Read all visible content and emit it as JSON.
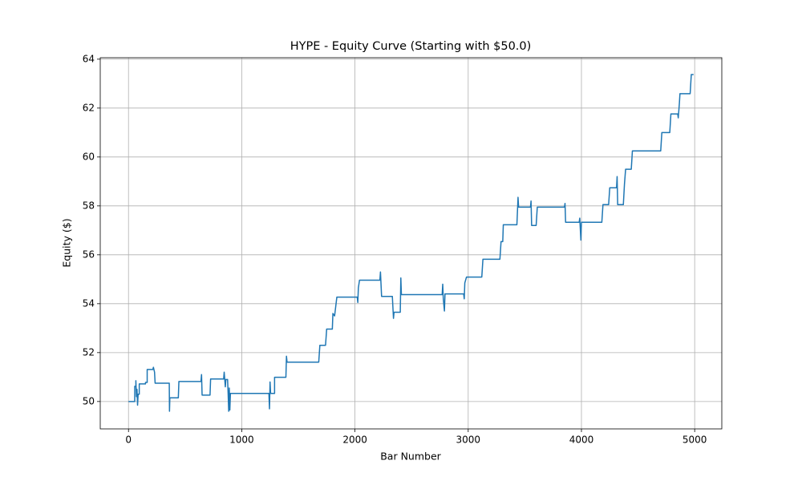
{
  "chart_data": {
    "type": "line",
    "title": "HYPE - Equity Curve (Starting with $50.0)",
    "x_label": "Bar Number",
    "y_label": "Equity ($)",
    "color": "#1f77b4",
    "grid": true,
    "xlim": [
      -249.5,
      5239.5
    ],
    "ylim": [
      48.88,
      64.06
    ],
    "xticks": [
      0,
      1000,
      2000,
      3000,
      4000,
      5000
    ],
    "yticks": [
      50,
      52,
      54,
      56,
      58,
      60,
      62,
      64
    ],
    "x": [
      0,
      55,
      55,
      65,
      65,
      70,
      75,
      80,
      85,
      95,
      95,
      150,
      150,
      165,
      165,
      215,
      220,
      230,
      235,
      360,
      362,
      365,
      440,
      445,
      640,
      645,
      650,
      720,
      725,
      840,
      845,
      855,
      860,
      875,
      880,
      885,
      890,
      895,
      900,
      1240,
      1245,
      1250,
      1255,
      1290,
      1290,
      1390,
      1395,
      1400,
      1680,
      1690,
      1740,
      1750,
      1800,
      1805,
      1820,
      1840,
      2020,
      2025,
      2030,
      2040,
      2220,
      2225,
      2235,
      2330,
      2340,
      2345,
      2400,
      2405,
      2410,
      2770,
      2775,
      2780,
      2790,
      2795,
      2960,
      2965,
      2970,
      2985,
      3120,
      3130,
      3280,
      3290,
      3305,
      3310,
      3430,
      3440,
      3445,
      3550,
      3555,
      3560,
      3600,
      3610,
      3850,
      3855,
      3860,
      3980,
      3985,
      3995,
      4000,
      4180,
      4190,
      4240,
      4250,
      4310,
      4315,
      4320,
      4370,
      4380,
      4390,
      4440,
      4450,
      4700,
      4710,
      4780,
      4790,
      4850,
      4855,
      4865,
      4870,
      4960,
      4970,
      4990
    ],
    "values": [
      50,
      50,
      50.62,
      50.62,
      50.85,
      50.2,
      50.5,
      49.85,
      50.3,
      50.3,
      50.72,
      50.72,
      50.78,
      50.78,
      51.31,
      51.31,
      51.4,
      51.2,
      50.75,
      50.75,
      49.6,
      50.15,
      50.15,
      50.82,
      50.82,
      51.1,
      50.26,
      50.26,
      50.92,
      50.92,
      51.2,
      50.6,
      50.9,
      50.9,
      50.3,
      49.6,
      50.55,
      49.65,
      50.33,
      50.33,
      49.7,
      50.8,
      50.33,
      50.33,
      50.99,
      50.99,
      51.85,
      51.61,
      51.61,
      52.3,
      52.3,
      52.96,
      52.96,
      53.6,
      53.5,
      54.27,
      54.27,
      54.05,
      54.65,
      54.96,
      54.96,
      55.3,
      54.3,
      54.3,
      53.4,
      53.65,
      53.65,
      55.05,
      54.37,
      54.37,
      54.8,
      54.2,
      53.7,
      54.4,
      54.4,
      54.2,
      54.85,
      55.09,
      55.09,
      55.82,
      55.82,
      56.54,
      56.54,
      57.23,
      57.23,
      58.35,
      57.95,
      57.95,
      58.2,
      57.2,
      57.2,
      57.95,
      57.95,
      58.1,
      57.33,
      57.33,
      57.5,
      56.6,
      57.33,
      57.33,
      58.05,
      58.05,
      58.74,
      58.74,
      59.2,
      58.05,
      58.05,
      58.9,
      59.5,
      59.5,
      60.25,
      60.25,
      61.0,
      61.0,
      61.76,
      61.76,
      61.6,
      62.2,
      62.59,
      62.59,
      63.37,
      63.37
    ]
  }
}
